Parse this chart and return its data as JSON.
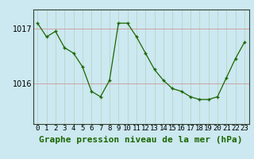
{
  "x": [
    0,
    1,
    2,
    3,
    4,
    5,
    6,
    7,
    8,
    9,
    10,
    11,
    12,
    13,
    14,
    15,
    16,
    17,
    18,
    19,
    20,
    21,
    22,
    23
  ],
  "y": [
    1017.1,
    1016.85,
    1016.95,
    1016.65,
    1016.55,
    1016.3,
    1015.85,
    1015.75,
    1016.05,
    1017.1,
    1017.1,
    1016.85,
    1016.55,
    1016.25,
    1016.05,
    1015.9,
    1015.85,
    1015.75,
    1015.7,
    1015.7,
    1015.75,
    1016.1,
    1016.45,
    1016.75
  ],
  "line_color": "#1a6600",
  "marker_color": "#1a6600",
  "bg_color": "#cce8f0",
  "grid_color_v": "#b8d4c8",
  "grid_color_h": "#cc9999",
  "ylabel_ticks": [
    1016,
    1017
  ],
  "xlabel": "Graphe pression niveau de la mer (hPa)",
  "ylim_min": 1015.25,
  "ylim_max": 1017.35,
  "tick_fontsize": 7.0,
  "label_fontsize": 8.0
}
